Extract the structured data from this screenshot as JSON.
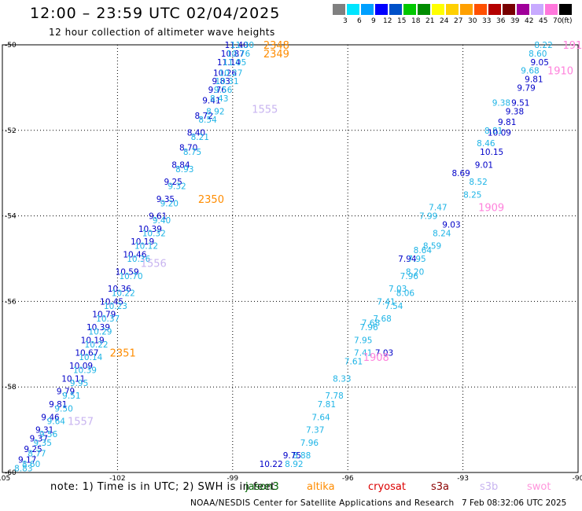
{
  "header": {
    "title": "12:00 – 23:59 UTC 02/04/2025",
    "subtitle": "12 hour collection of altimeter wave heights"
  },
  "legend": {
    "values": [
      "3",
      "6",
      "9",
      "12",
      "15",
      "18",
      "21",
      "24",
      "27",
      "30",
      "33",
      "36",
      "39",
      "42",
      "45",
      "70"
    ],
    "unit": "(ft)",
    "colors": [
      "#808080",
      "#00e5ff",
      "#00a0ff",
      "#0000ff",
      "#0050c8",
      "#00c800",
      "#008c00",
      "#ffff00",
      "#ffd000",
      "#ffa000",
      "#ff5000",
      "#b40000",
      "#780000",
      "#a0009a",
      "#c8aaff",
      "#ff78dc",
      "#000000"
    ]
  },
  "axes": {
    "lat_ticks": [
      "-50",
      "-52",
      "-54",
      "-56",
      "-58",
      "-60"
    ],
    "lon_ticks": [
      "-105",
      "-102",
      "-99",
      "-96",
      "-93",
      "-90"
    ]
  },
  "footer": {
    "note": "note: 1) Time is in UTC; 2) SWH is in feet",
    "credit": "NOAA/NESDIS Center for Satellite Applications and Research",
    "timestamp": "7 Feb 08:32:06 UTC 2025"
  },
  "satellites": [
    {
      "name": "jason3",
      "color": "#006400"
    },
    {
      "name": "altika",
      "color": "#ff8c00"
    },
    {
      "name": "cryosat",
      "color": "#dc0000"
    },
    {
      "name": "s3a",
      "color": "#8b0000"
    },
    {
      "name": "s3b",
      "color": "#c8b4f0"
    },
    {
      "name": "swot",
      "color": "#ff96dc"
    }
  ],
  "colors": {
    "dark_obs": "#0000c8",
    "light_obs": "#1eb4e6",
    "s3b": "#c8b4f0",
    "altika": "#ff8c00",
    "swot": "#ff82dc"
  },
  "chart_data": {
    "type": "scatter",
    "title": "12:00 – 23:59 UTC 02/04/2025",
    "subtitle": "12 hour collection of altimeter wave heights",
    "xlim": [
      -105,
      -90
    ],
    "ylim": [
      -60,
      -50
    ],
    "grid": true,
    "unit": "ft",
    "pass_labels": [
      {
        "text": "2348",
        "lon": -98.2,
        "lat": -50.0,
        "sat": "altika"
      },
      {
        "text": "2349",
        "lon": -98.2,
        "lat": -50.2,
        "sat": "altika"
      },
      {
        "text": "1555",
        "lon": -98.5,
        "lat": -51.5,
        "sat": "s3b"
      },
      {
        "text": "2350",
        "lon": -99.9,
        "lat": -53.6,
        "sat": "altika"
      },
      {
        "text": "1556",
        "lon": -101.4,
        "lat": -55.1,
        "sat": "s3b"
      },
      {
        "text": "2351",
        "lon": -102.2,
        "lat": -57.2,
        "sat": "altika"
      },
      {
        "text": "1557",
        "lon": -103.3,
        "lat": -58.8,
        "sat": "s3b"
      },
      {
        "text": "1911",
        "lon": -90.4,
        "lat": -50.0,
        "sat": "swot"
      },
      {
        "text": "1910",
        "lon": -90.8,
        "lat": -50.6,
        "sat": "swot"
      },
      {
        "text": "1909",
        "lon": -92.6,
        "lat": -53.8,
        "sat": "swot"
      },
      {
        "text": "1908",
        "lon": -95.6,
        "lat": -57.3,
        "sat": "swot"
      }
    ],
    "series": [
      {
        "name": "left-dark",
        "color": "#0000c8",
        "lon": [
          -98.9,
          -99.0,
          -99.1,
          -99.2,
          -99.3,
          -99.4,
          -99.55,
          -99.75,
          -99.95,
          -100.15,
          -100.35,
          -100.55,
          -100.75,
          -100.95,
          -101.15,
          -101.35,
          -101.55,
          -101.75,
          -101.95,
          -102.15,
          -102.35,
          -102.5,
          -102.65,
          -102.8,
          -102.95,
          -103.15,
          -103.35,
          -103.55,
          -103.75,
          -103.9,
          -104.05,
          -104.2,
          -104.35
        ],
        "lat": [
          -50.0,
          -50.2,
          -50.4,
          -50.65,
          -50.85,
          -51.05,
          -51.3,
          -51.65,
          -52.05,
          -52.4,
          -52.8,
          -53.2,
          -53.6,
          -54.0,
          -54.3,
          -54.6,
          -54.9,
          -55.3,
          -55.7,
          -56.0,
          -56.3,
          -56.6,
          -56.9,
          -57.2,
          -57.5,
          -57.8,
          -58.1,
          -58.4,
          -58.7,
          -59.0,
          -59.2,
          -59.45,
          -59.7
        ],
        "values": [
          11.4,
          10.87,
          11.14,
          10.26,
          9.83,
          9.76,
          9.41,
          8.72,
          8.4,
          8.7,
          8.84,
          9.25,
          9.35,
          9.61,
          10.39,
          10.19,
          10.46,
          10.59,
          10.36,
          10.45,
          10.79,
          10.39,
          10.19,
          10.67,
          10.09,
          10.11,
          9.79,
          9.81,
          9.46,
          9.31,
          9.37,
          9.25,
          9.17
        ]
      },
      {
        "name": "left-light",
        "color": "#1eb4e6",
        "lon": [
          -98.75,
          -98.85,
          -98.95,
          -99.05,
          -99.15,
          -99.25,
          -99.35,
          -99.45,
          -99.65,
          -99.85,
          -100.05,
          -100.25,
          -100.45,
          -100.65,
          -100.85,
          -101.05,
          -101.25,
          -101.45,
          -101.65,
          -101.85,
          -102.05,
          -102.25,
          -102.45,
          -102.55,
          -102.7,
          -102.85,
          -103.0,
          -103.2,
          -103.4,
          -103.6,
          -103.8,
          -103.95,
          -104.1,
          -104.25,
          -104.45
        ],
        "lat": [
          -50.0,
          -50.2,
          -50.4,
          -50.65,
          -50.85,
          -51.05,
          -51.25,
          -51.55,
          -51.75,
          -52.15,
          -52.5,
          -52.9,
          -53.3,
          -53.7,
          -54.1,
          -54.4,
          -54.7,
          -55.0,
          -55.4,
          -55.8,
          -56.1,
          -56.4,
          -56.7,
          -57.0,
          -57.3,
          -57.6,
          -57.9,
          -58.2,
          -58.5,
          -58.8,
          -59.1,
          -59.3,
          -59.55,
          -59.8,
          -59.9
        ],
        "values": [
          11.3,
          10.76,
          11.05,
          10.27,
          10.31,
          9.56,
          8.43,
          8.92,
          8.54,
          8.21,
          8.75,
          8.93,
          9.32,
          9.2,
          9.4,
          10.32,
          10.12,
          10.36,
          10.7,
          10.22,
          10.23,
          10.37,
          10.29,
          10.22,
          10.14,
          10.39,
          9.95,
          9.51,
          9.5,
          9.64,
          9.56,
          9.35,
          8.77,
          8.6,
          8.83
        ]
      },
      {
        "name": "right-light",
        "color": "#1eb4e6",
        "lon": [
          -90.9,
          -91.05,
          -91.25,
          -92.0,
          -92.2,
          -92.4,
          -92.6,
          -92.75,
          -93.65,
          -93.9,
          -94.05,
          -94.25,
          -94.5,
          -94.8,
          -95.1,
          -95.45,
          -95.6,
          -95.85,
          -96.15,
          -96.35,
          -96.55,
          -96.7,
          -96.85,
          -97.0,
          -97.2,
          -97.4
        ],
        "lat": [
          -50.0,
          -50.2,
          -50.6,
          -51.35,
          -52.0,
          -52.3,
          -53.2,
          -53.5,
          -53.8,
          -54.0,
          -54.8,
          -55.3,
          -55.8,
          -56.1,
          -56.4,
          -56.6,
          -57.2,
          -57.4,
          -57.8,
          -58.2,
          -58.4,
          -58.7,
          -59.0,
          -59.3,
          -59.6,
          -59.8
        ],
        "values": [
          8.22,
          8.6,
          9.68,
          9.38,
          8.81,
          8.46,
          8.52,
          8.25,
          7.47,
          7.99,
          8.64,
          8.2,
          8.06,
          7.54,
          7.68,
          7.96,
          7.41,
          7.61,
          8.33,
          7.78,
          7.81,
          7.64,
          7.37,
          7.96,
          8.88,
          8.92
        ]
      },
      {
        "name": "right-dark",
        "color": "#0000c8",
        "lon": [
          -91.0,
          -91.15,
          -91.35,
          -91.5,
          -91.65,
          -91.85,
          -92.05,
          -92.25,
          -92.45,
          -93.05,
          -93.3,
          -94.45,
          -95.05,
          -97.45,
          -98.0
        ],
        "lat": [
          -50.4,
          -50.8,
          -51.0,
          -51.35,
          -51.55,
          -51.8,
          -52.05,
          -52.5,
          -52.8,
          -53.0,
          -54.2,
          -55.0,
          -57.2,
          -59.6,
          -59.8
        ],
        "values": [
          9.05,
          9.81,
          9.79,
          9.51,
          9.38,
          9.81,
          10.09,
          10.15,
          9.01,
          8.69,
          9.03,
          7.94,
          7.03,
          9.75,
          10.22
        ]
      },
      {
        "name": "right-mid",
        "color": "#1eb4e6",
        "lon": [
          -93.55,
          -93.8,
          -94.2,
          -94.4,
          -94.7,
          -95.0,
          -95.4,
          -95.6
        ],
        "lat": [
          -54.4,
          -54.7,
          -55.0,
          -55.4,
          -55.7,
          -56.0,
          -56.5,
          -56.9
        ],
        "values": [
          8.24,
          8.59,
          7.95,
          7.96,
          7.03,
          7.41,
          7.68,
          7.95
        ]
      }
    ]
  }
}
